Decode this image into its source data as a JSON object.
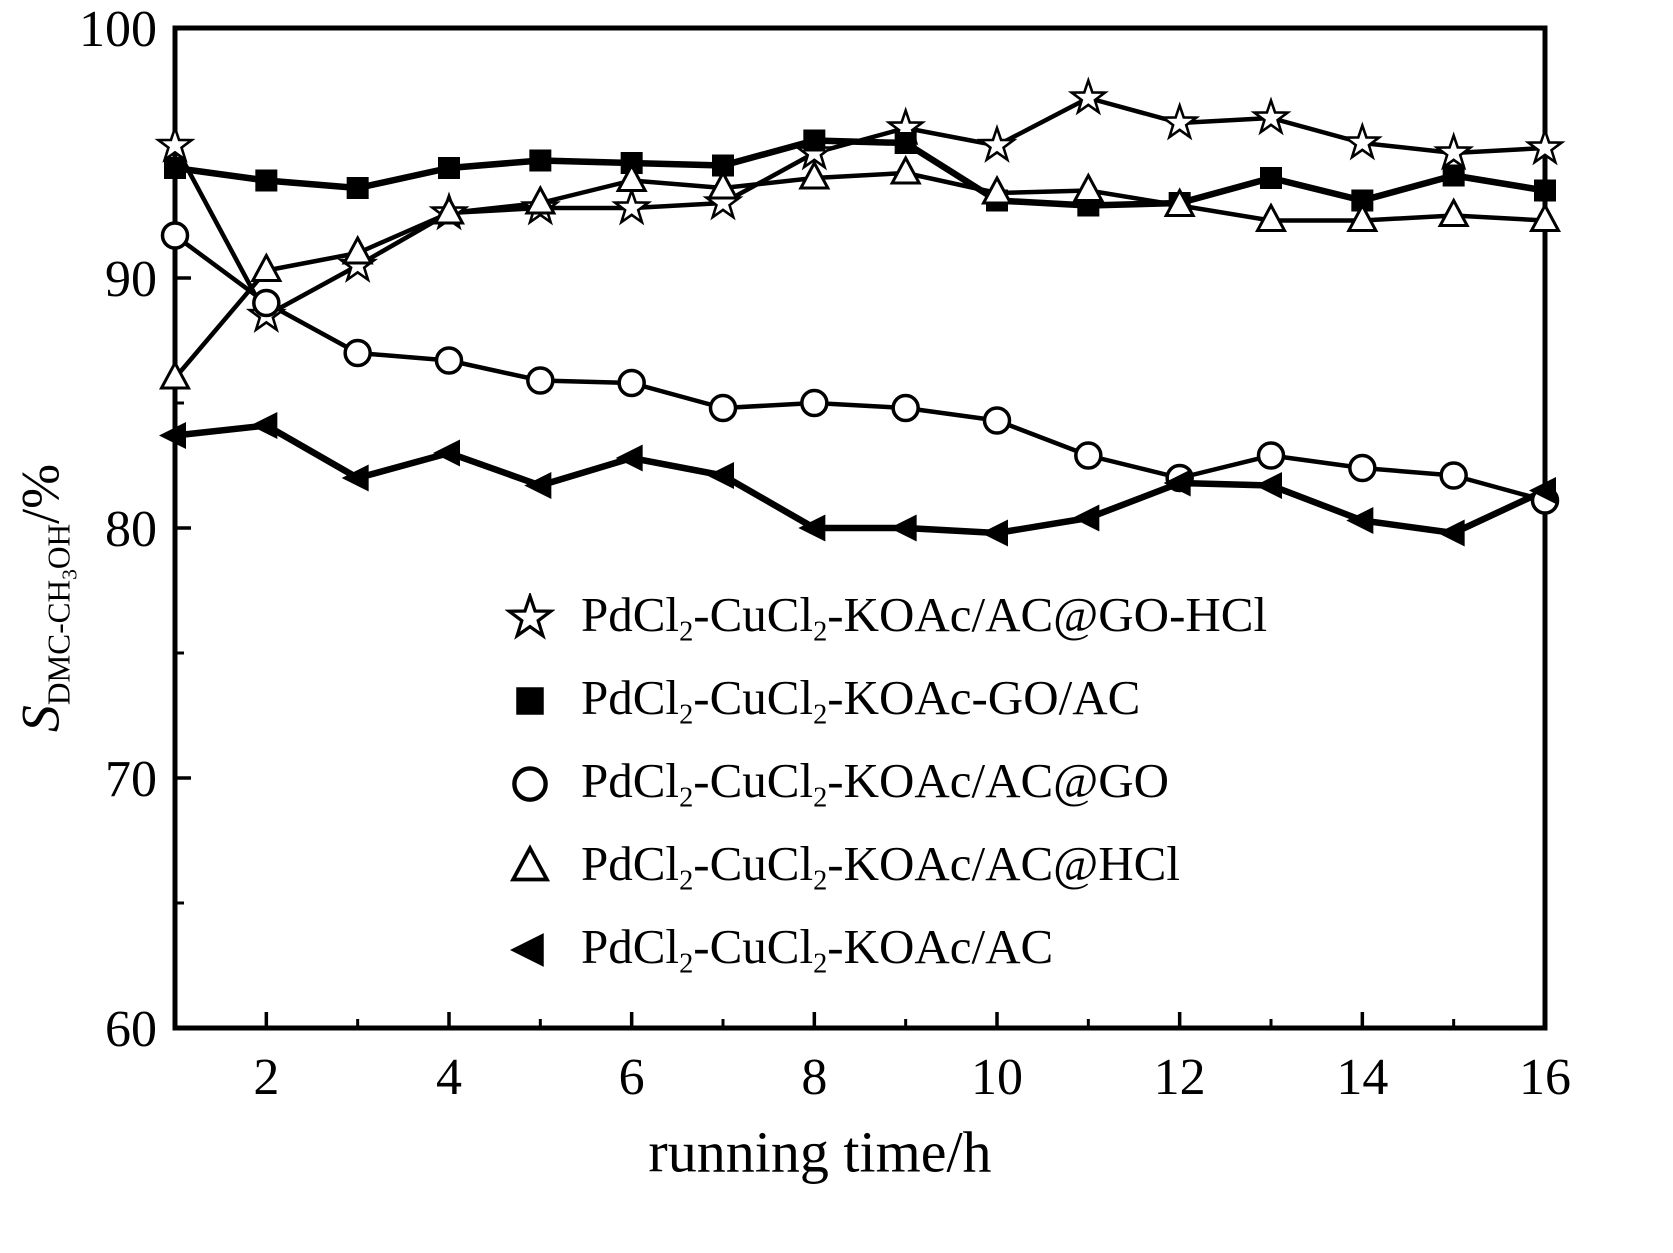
{
  "figure": {
    "background": "#ffffff",
    "ink": "#000000"
  },
  "chart_data": {
    "type": "line",
    "x": [
      1,
      2,
      3,
      4,
      5,
      6,
      7,
      8,
      9,
      10,
      11,
      12,
      13,
      14,
      15,
      16
    ],
    "xlabel": "running time/h",
    "ylabel": "S(DMC-CH3OH)/%",
    "ylabel_parts": [
      {
        "t": "S",
        "s": "i"
      },
      {
        "t": "DMC-CH",
        "s": "sub"
      },
      {
        "t": "3",
        "s": "subsub"
      },
      {
        "t": "OH",
        "s": "sub"
      },
      {
        "t": "/%"
      }
    ],
    "xlim": [
      1,
      16
    ],
    "ylim": [
      60,
      100
    ],
    "xticks": [
      2,
      4,
      6,
      8,
      10,
      12,
      14,
      16
    ],
    "xticks_minor": [
      3,
      5,
      7,
      9,
      11,
      13,
      15
    ],
    "yticks": [
      60,
      70,
      80,
      90,
      100
    ],
    "yticks_minor": [
      65,
      75,
      85,
      95
    ],
    "grid": false,
    "legend_position": "inside-lower-center",
    "series": [
      {
        "name": "PdCl2-CuCl2-KOAc/AC@GO-HCl",
        "marker": "star-open",
        "lw": 4.5,
        "label_parts": [
          {
            "t": "PdCl"
          },
          {
            "t": "2",
            "s": "sub"
          },
          {
            "t": "-CuCl"
          },
          {
            "t": "2",
            "s": "sub"
          },
          {
            "t": "-KOAc/AC@GO-HCl"
          }
        ],
        "values": [
          95.3,
          88.5,
          90.5,
          92.6,
          92.8,
          92.8,
          93.0,
          95.0,
          96.0,
          95.3,
          97.2,
          96.2,
          96.4,
          95.4,
          95.0,
          95.2
        ]
      },
      {
        "name": "PdCl2-CuCl2-KOAc-GO/AC",
        "marker": "square-filled",
        "lw": 6.5,
        "label_parts": [
          {
            "t": "PdCl"
          },
          {
            "t": "2",
            "s": "sub"
          },
          {
            "t": "-CuCl"
          },
          {
            "t": "2",
            "s": "sub"
          },
          {
            "t": "-KOAc-GO/AC"
          }
        ],
        "values": [
          94.4,
          93.9,
          93.6,
          94.4,
          94.7,
          94.6,
          94.5,
          95.5,
          95.4,
          93.1,
          92.9,
          93.0,
          94.0,
          93.1,
          94.1,
          93.5
        ]
      },
      {
        "name": "PdCl2-CuCl2-KOAc/AC@GO",
        "marker": "circle-open",
        "lw": 4.5,
        "label_parts": [
          {
            "t": "PdCl"
          },
          {
            "t": "2",
            "s": "sub"
          },
          {
            "t": "-CuCl"
          },
          {
            "t": "2",
            "s": "sub"
          },
          {
            "t": "-KOAc/AC@GO"
          }
        ],
        "values": [
          91.7,
          89.0,
          87.0,
          86.7,
          85.9,
          85.8,
          84.8,
          85.0,
          84.8,
          84.3,
          82.9,
          82.0,
          82.9,
          82.4,
          82.1,
          81.1
        ]
      },
      {
        "name": "PdCl2-CuCl2-KOAc/AC@HCl",
        "marker": "triangle-open",
        "lw": 4.5,
        "label_parts": [
          {
            "t": "PdCl"
          },
          {
            "t": "2",
            "s": "sub"
          },
          {
            "t": "-CuCl"
          },
          {
            "t": "2",
            "s": "sub"
          },
          {
            "t": "-KOAc/AC@HCl"
          }
        ],
        "values": [
          86.0,
          90.3,
          91.0,
          92.6,
          93.0,
          93.9,
          93.6,
          94.0,
          94.2,
          93.4,
          93.5,
          92.9,
          92.3,
          92.3,
          92.5,
          92.3
        ]
      },
      {
        "name": "PdCl2-CuCl2-KOAc/AC",
        "marker": "triangle-left-filled",
        "lw": 6.5,
        "label_parts": [
          {
            "t": "PdCl"
          },
          {
            "t": "2",
            "s": "sub"
          },
          {
            "t": "-CuCl"
          },
          {
            "t": "2",
            "s": "sub"
          },
          {
            "t": "-KOAc/AC"
          }
        ],
        "values": [
          83.7,
          84.1,
          82.0,
          83.0,
          81.7,
          82.8,
          82.1,
          80.0,
          80.0,
          79.8,
          80.4,
          81.8,
          81.7,
          80.3,
          79.8,
          81.5
        ]
      }
    ]
  }
}
